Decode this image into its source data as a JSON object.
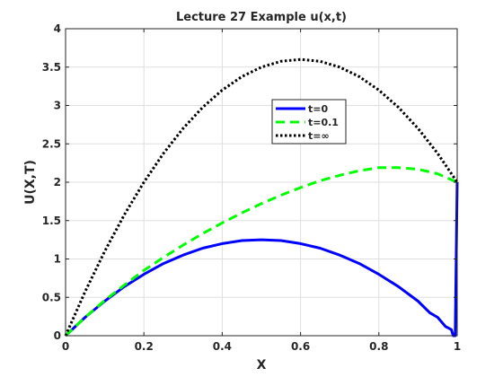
{
  "chart_data": {
    "type": "line",
    "title": "Lecture 27 Example u(x,t)",
    "xlabel": "X",
    "ylabel": "U(X,T)",
    "xlim": [
      0,
      1
    ],
    "ylim": [
      0,
      4
    ],
    "grid": true,
    "legend_position": "inside-top-right",
    "x_ticks": [
      {
        "value": 0,
        "label": "0"
      },
      {
        "value": 0.2,
        "label": "0.2"
      },
      {
        "value": 0.4,
        "label": "0.4"
      },
      {
        "value": 0.6,
        "label": "0.6"
      },
      {
        "value": 0.8,
        "label": "0.8"
      },
      {
        "value": 1,
        "label": "1"
      }
    ],
    "y_ticks": [
      {
        "value": 0,
        "label": "0"
      },
      {
        "value": 0.5,
        "label": "0.5"
      },
      {
        "value": 1,
        "label": "1"
      },
      {
        "value": 1.5,
        "label": "1.5"
      },
      {
        "value": 2,
        "label": "2"
      },
      {
        "value": 2.5,
        "label": "2.5"
      },
      {
        "value": 3,
        "label": "3"
      },
      {
        "value": 3.5,
        "label": "3.5"
      },
      {
        "value": 4,
        "label": "4"
      }
    ],
    "series": [
      {
        "name": "t=0",
        "color": "#0000ff",
        "style": "solid",
        "points": [
          [
            0,
            0
          ],
          [
            0.05,
            0.24
          ],
          [
            0.1,
            0.45
          ],
          [
            0.15,
            0.64
          ],
          [
            0.2,
            0.8
          ],
          [
            0.25,
            0.94
          ],
          [
            0.3,
            1.05
          ],
          [
            0.35,
            1.14
          ],
          [
            0.4,
            1.2
          ],
          [
            0.45,
            1.24
          ],
          [
            0.5,
            1.25
          ],
          [
            0.55,
            1.24
          ],
          [
            0.6,
            1.2
          ],
          [
            0.65,
            1.14
          ],
          [
            0.7,
            1.05
          ],
          [
            0.75,
            0.94
          ],
          [
            0.8,
            0.8
          ],
          [
            0.85,
            0.64
          ],
          [
            0.9,
            0.45
          ],
          [
            0.93,
            0.3
          ],
          [
            0.95,
            0.24
          ],
          [
            0.97,
            0.12
          ],
          [
            0.985,
            0.08
          ],
          [
            0.99,
            0
          ],
          [
            0.995,
            0
          ],
          [
            1,
            2
          ]
        ]
      },
      {
        "name": "t=0.1",
        "color": "#00ff00",
        "style": "dashed",
        "points": [
          [
            0,
            0
          ],
          [
            0.05,
            0.24
          ],
          [
            0.1,
            0.46
          ],
          [
            0.15,
            0.66
          ],
          [
            0.2,
            0.85
          ],
          [
            0.25,
            1.02
          ],
          [
            0.3,
            1.18
          ],
          [
            0.35,
            1.33
          ],
          [
            0.4,
            1.47
          ],
          [
            0.45,
            1.6
          ],
          [
            0.5,
            1.72
          ],
          [
            0.55,
            1.83
          ],
          [
            0.6,
            1.93
          ],
          [
            0.65,
            2.02
          ],
          [
            0.7,
            2.09
          ],
          [
            0.75,
            2.15
          ],
          [
            0.8,
            2.19
          ],
          [
            0.85,
            2.19
          ],
          [
            0.9,
            2.17
          ],
          [
            0.95,
            2.11
          ],
          [
            1,
            2
          ]
        ]
      },
      {
        "name": "t=∞",
        "color": "#000000",
        "style": "dotted",
        "points": [
          [
            0,
            0
          ],
          [
            0.05,
            0.575
          ],
          [
            0.1,
            1.1
          ],
          [
            0.15,
            1.575
          ],
          [
            0.2,
            2
          ],
          [
            0.25,
            2.375
          ],
          [
            0.3,
            2.7
          ],
          [
            0.35,
            2.975
          ],
          [
            0.4,
            3.2
          ],
          [
            0.45,
            3.375
          ],
          [
            0.5,
            3.5
          ],
          [
            0.55,
            3.575
          ],
          [
            0.6,
            3.6
          ],
          [
            0.65,
            3.575
          ],
          [
            0.7,
            3.5
          ],
          [
            0.75,
            3.375
          ],
          [
            0.8,
            3.2
          ],
          [
            0.85,
            2.975
          ],
          [
            0.9,
            2.7
          ],
          [
            0.95,
            2.375
          ],
          [
            1,
            2
          ]
        ]
      }
    ]
  }
}
